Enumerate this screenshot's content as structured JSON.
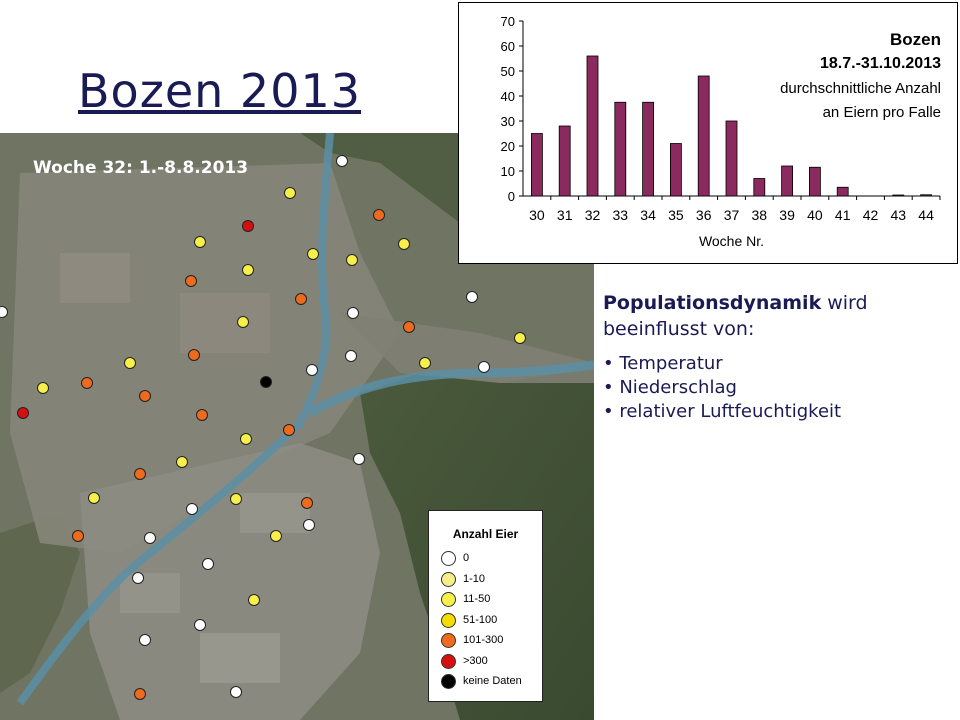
{
  "slide": {
    "title": "Bozen 2013",
    "week_label": "Woche 32: 1.-8.8.2013",
    "populationsdynamik": {
      "heading_bold": "Populationsdynamik",
      "heading_rest": " wird beeinflusst von:",
      "factors": [
        "Temperatur",
        "Niederschlag",
        "relativer Luftfeuchtigkeit"
      ]
    }
  },
  "legend": {
    "title": "Anzahl Eier",
    "items": [
      {
        "label": "0",
        "color": "#ffffff"
      },
      {
        "label": "1-10",
        "color": "#f5ef8a"
      },
      {
        "label": "11-50",
        "color": "#f7f04a"
      },
      {
        "label": "51-100",
        "color": "#f4dc00"
      },
      {
        "label": "101-300",
        "color": "#ee6a1c"
      },
      {
        "label": ">300",
        "color": "#d41010"
      },
      {
        "label": "keine Daten",
        "color": "#000000"
      }
    ]
  },
  "chart_data": {
    "type": "bar",
    "title_lines": [
      "Bozen",
      "18.7.-31.10.2013",
      "durchschnittliche Anzahl",
      "an Eiern pro Falle"
    ],
    "xlabel": "Woche Nr.",
    "ylabel": "",
    "categories": [
      "30",
      "31",
      "32",
      "33",
      "34",
      "35",
      "36",
      "37",
      "38",
      "39",
      "40",
      "41",
      "42",
      "43",
      "44"
    ],
    "values": [
      25,
      28,
      56,
      37.5,
      37.5,
      21,
      48,
      30,
      7,
      12,
      11.5,
      3.5,
      0,
      0.4,
      0.5
    ],
    "ylim": [
      0,
      70
    ],
    "yticks": [
      0,
      10,
      20,
      30,
      40,
      50,
      60,
      70
    ],
    "bar_color": "#8b2a5e",
    "grid": false
  }
}
